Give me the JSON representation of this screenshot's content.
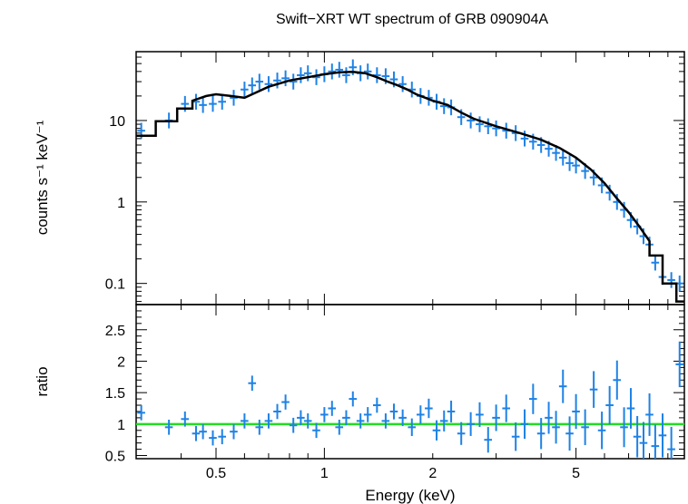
{
  "chart_data": [
    {
      "type": "scatter",
      "title": "Swift−XRT WT spectrum of GRB 090904A",
      "ylabel": "counts s⁻¹ keV⁻¹",
      "xlabel": "",
      "xscale": "log",
      "yscale": "log",
      "xlim": [
        0.3,
        10
      ],
      "ylim": [
        0.055,
        70
      ],
      "yticks": [
        {
          "value": 0.1,
          "label": "0.1"
        },
        {
          "value": 1,
          "label": "1"
        },
        {
          "value": 10,
          "label": "10"
        }
      ],
      "colors": {
        "data": "#1e82e6",
        "model": "#000000"
      },
      "data_points": [
        [
          0.31,
          7.5
        ],
        [
          0.37,
          10.0
        ],
        [
          0.41,
          16.0
        ],
        [
          0.44,
          17.0
        ],
        [
          0.46,
          15.5
        ],
        [
          0.49,
          16.0
        ],
        [
          0.52,
          17.0
        ],
        [
          0.56,
          19.0
        ],
        [
          0.6,
          24.0
        ],
        [
          0.63,
          27.0
        ],
        [
          0.66,
          30.0
        ],
        [
          0.7,
          28.0
        ],
        [
          0.74,
          31.0
        ],
        [
          0.78,
          33.0
        ],
        [
          0.82,
          30.0
        ],
        [
          0.86,
          36.0
        ],
        [
          0.9,
          38.0
        ],
        [
          0.95,
          34.0
        ],
        [
          1.0,
          37.0
        ],
        [
          1.05,
          40.0
        ],
        [
          1.1,
          42.0
        ],
        [
          1.15,
          36.0
        ],
        [
          1.2,
          45.0
        ],
        [
          1.26,
          38.0
        ],
        [
          1.32,
          40.0
        ],
        [
          1.4,
          36.0
        ],
        [
          1.48,
          35.0
        ],
        [
          1.56,
          32.0
        ],
        [
          1.65,
          28.0
        ],
        [
          1.75,
          24.0
        ],
        [
          1.85,
          20.0
        ],
        [
          1.95,
          19.0
        ],
        [
          2.05,
          17.0
        ],
        [
          2.15,
          15.0
        ],
        [
          2.25,
          14.5
        ],
        [
          2.4,
          11.0
        ],
        [
          2.55,
          10.0
        ],
        [
          2.7,
          9.0
        ],
        [
          2.85,
          8.5
        ],
        [
          3.0,
          8.0
        ],
        [
          3.2,
          7.5
        ],
        [
          3.4,
          7.0
        ],
        [
          3.6,
          6.0
        ],
        [
          3.8,
          5.5
        ],
        [
          4.0,
          5.0
        ],
        [
          4.2,
          4.5
        ],
        [
          4.4,
          4.0
        ],
        [
          4.6,
          3.5
        ],
        [
          4.8,
          3.0
        ],
        [
          5.0,
          2.8
        ],
        [
          5.3,
          2.4
        ],
        [
          5.6,
          2.0
        ],
        [
          5.9,
          1.6
        ],
        [
          6.2,
          1.3
        ],
        [
          6.5,
          1.0
        ],
        [
          6.8,
          0.8
        ],
        [
          7.1,
          0.6
        ],
        [
          7.4,
          0.5
        ],
        [
          7.7,
          0.38
        ],
        [
          8.0,
          0.3
        ],
        [
          8.3,
          0.18
        ],
        [
          8.7,
          0.12
        ],
        [
          9.2,
          0.11
        ],
        [
          9.7,
          0.1
        ]
      ],
      "model_curve": [
        [
          0.3,
          6.5
        ],
        [
          0.34,
          6.5
        ],
        [
          0.34,
          9.8
        ],
        [
          0.39,
          9.8
        ],
        [
          0.39,
          14.0
        ],
        [
          0.43,
          14.0
        ],
        [
          0.43,
          17.5
        ],
        [
          0.47,
          20.0
        ],
        [
          0.5,
          21.0
        ],
        [
          0.55,
          20.0
        ],
        [
          0.6,
          19.0
        ],
        [
          0.7,
          26.0
        ],
        [
          0.8,
          31.0
        ],
        [
          0.9,
          34.0
        ],
        [
          1.0,
          37.0
        ],
        [
          1.1,
          39.0
        ],
        [
          1.2,
          39.5
        ],
        [
          1.3,
          38.0
        ],
        [
          1.4,
          34.0
        ],
        [
          1.5,
          30.0
        ],
        [
          1.6,
          27.0
        ],
        [
          1.7,
          24.0
        ],
        [
          1.8,
          21.0
        ],
        [
          2.0,
          17.5
        ],
        [
          2.2,
          15.5
        ],
        [
          2.4,
          12.5
        ],
        [
          2.6,
          10.5
        ],
        [
          3.0,
          8.5
        ],
        [
          3.5,
          7.0
        ],
        [
          4.0,
          5.8
        ],
        [
          4.5,
          4.6
        ],
        [
          5.0,
          3.5
        ],
        [
          5.5,
          2.5
        ],
        [
          6.0,
          1.7
        ],
        [
          6.5,
          1.1
        ],
        [
          7.0,
          0.75
        ],
        [
          7.5,
          0.5
        ],
        [
          8.0,
          0.33
        ],
        [
          8.0,
          0.22
        ],
        [
          8.7,
          0.22
        ],
        [
          8.7,
          0.1
        ],
        [
          9.5,
          0.1
        ],
        [
          9.5,
          0.06
        ],
        [
          10.0,
          0.06
        ]
      ]
    },
    {
      "type": "scatter",
      "title": "",
      "ylabel": "ratio",
      "xlabel": "Energy (keV)",
      "xscale": "log",
      "yscale": "linear",
      "xlim": [
        0.3,
        10
      ],
      "ylim": [
        0.45,
        2.9
      ],
      "reference_line": 1.0,
      "xticks": [
        {
          "value": 0.5,
          "label": "0.5"
        },
        {
          "value": 1,
          "label": "1"
        },
        {
          "value": 2,
          "label": "2"
        },
        {
          "value": 5,
          "label": "5"
        }
      ],
      "yticks": [
        {
          "value": 0.5,
          "label": "0.5"
        },
        {
          "value": 1,
          "label": "1"
        },
        {
          "value": 1.5,
          "label": "1.5"
        },
        {
          "value": 2,
          "label": "2"
        },
        {
          "value": 2.5,
          "label": "2.5"
        }
      ],
      "colors": {
        "data": "#1e82e6",
        "reference": "#22dd22"
      },
      "data_points": [
        [
          0.31,
          1.18
        ],
        [
          0.37,
          0.95
        ],
        [
          0.41,
          1.08
        ],
        [
          0.44,
          0.85
        ],
        [
          0.46,
          0.88
        ],
        [
          0.49,
          0.78
        ],
        [
          0.52,
          0.8
        ],
        [
          0.56,
          0.88
        ],
        [
          0.6,
          1.05
        ],
        [
          0.63,
          1.65
        ],
        [
          0.66,
          0.95
        ],
        [
          0.7,
          1.05
        ],
        [
          0.74,
          1.2
        ],
        [
          0.78,
          1.35
        ],
        [
          0.82,
          0.98
        ],
        [
          0.86,
          1.1
        ],
        [
          0.9,
          1.05
        ],
        [
          0.95,
          0.9
        ],
        [
          1.0,
          1.15
        ],
        [
          1.05,
          1.25
        ],
        [
          1.1,
          0.95
        ],
        [
          1.15,
          1.1
        ],
        [
          1.2,
          1.4
        ],
        [
          1.26,
          1.05
        ],
        [
          1.32,
          1.15
        ],
        [
          1.4,
          1.3
        ],
        [
          1.48,
          1.05
        ],
        [
          1.56,
          1.2
        ],
        [
          1.65,
          1.1
        ],
        [
          1.75,
          0.95
        ],
        [
          1.85,
          1.15
        ],
        [
          1.95,
          1.25
        ],
        [
          2.05,
          0.9
        ],
        [
          2.15,
          1.05
        ],
        [
          2.25,
          1.2
        ],
        [
          2.4,
          0.85
        ],
        [
          2.55,
          1.0
        ],
        [
          2.7,
          1.15
        ],
        [
          2.85,
          0.75
        ],
        [
          3.0,
          1.1
        ],
        [
          3.2,
          1.25
        ],
        [
          3.4,
          0.8
        ],
        [
          3.6,
          1.0
        ],
        [
          3.8,
          1.4
        ],
        [
          4.0,
          0.85
        ],
        [
          4.2,
          1.1
        ],
        [
          4.4,
          0.95
        ],
        [
          4.6,
          1.6
        ],
        [
          4.8,
          0.85
        ],
        [
          5.0,
          1.2
        ],
        [
          5.3,
          0.95
        ],
        [
          5.6,
          1.55
        ],
        [
          5.9,
          0.9
        ],
        [
          6.2,
          1.3
        ],
        [
          6.5,
          1.7
        ],
        [
          6.8,
          0.95
        ],
        [
          7.1,
          1.25
        ],
        [
          7.4,
          0.8
        ],
        [
          7.7,
          0.7
        ],
        [
          8.0,
          1.15
        ],
        [
          8.3,
          0.65
        ],
        [
          8.7,
          0.82
        ],
        [
          9.2,
          0.6
        ],
        [
          9.7,
          1.95
        ]
      ]
    }
  ]
}
